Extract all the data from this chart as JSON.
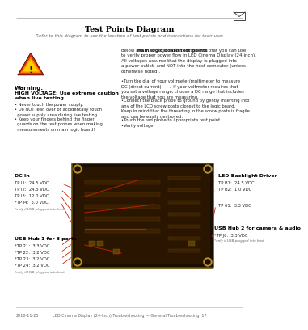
{
  "title": "Test Points Diagram",
  "subtitle": "Refer to this diagram to see the location of test points and instructions for their use:",
  "bg_color": "#ffffff",
  "header_line_color": "#bbbbbb",
  "title_color": "#000000",
  "subtitle_color": "#666666",
  "warning_title": "Warning:",
  "warning_bold_line1": "HIGH VOLTAGE: Use extreme caution",
  "warning_bold_line2": "when live testing.",
  "warning_bullets": [
    "• Never touch the power supply.",
    "• Do NOT lean over or accidentally touch\n  power supply area during live testing.",
    "• Keep your fingers behind the finger\n  guards on the test probes when making\n  measurements on main logic board!"
  ],
  "right_intro_plain": "Below are ",
  "right_intro_bold": "main logic board test points",
  "right_intro_rest": " that you can use\nto verify proper power flow in LED Cinema Display (24-inch).\nAll voltages assume that the display is plugged into\na power outlet, and NOT into the host computer (unless\notherwise noted).",
  "right_bullets": [
    "•Turn the dial of your voltmeter/multimeter to measure\nDC (direct current)      .  If your voltmeter requires that\nyou set a voltage range, choose a DC range that includes\nthe voltage that you are measuring.",
    "•Connect the black probe to ground by gently inserting into\nany of the LCD screw posts closest to the logic board.\nKeep in mind that the threading in the screw posts is fragile\nand can be easily destroyed.",
    "•Touch the red probe to appropriate test point.",
    "•Verify voltage."
  ],
  "dc_in_label": "DC In",
  "dc_in_points": [
    [
      "TP I1:",
      "24.5 VDC"
    ],
    [
      "TP I2:",
      "24.5 VDC"
    ],
    [
      "TP I3:",
      "12.0 VDC"
    ],
    [
      "*TP I4:",
      "5.0 VDC"
    ]
  ],
  "dc_in_note": "*only if USB plugged into host",
  "led_label": "LED Backlight Driver",
  "led_points": [
    [
      "TP B1:",
      "24.5 VDC"
    ],
    [
      "TP B2:",
      "1.0 VDC"
    ]
  ],
  "tp61_label": "TP 61:",
  "tp61_value": "3.3 VDC",
  "usb2_label": "USB Hub 2 for camera & audio",
  "usb2_point_label": "*TP J6:",
  "usb2_point_value": "3.3 VDC",
  "usb2_note": "*only if USB plugged into host",
  "usb1_label": "USB Hub 1 for 3 ports",
  "usb1_points": [
    [
      "*TP 21:",
      "3.3 VDC"
    ],
    [
      "*TP 22:",
      "3.2 VDC"
    ],
    [
      "*TP 23:",
      "3.2 VDC"
    ],
    [
      "*TP 24:",
      "3.2 VDC"
    ]
  ],
  "usb1_note": "*only if USB plugged into host",
  "footer_left": "2010-11-25",
  "footer_center": "LED Cinema Display (24-inch) Troubleshooting — General Troubleshooting  17"
}
